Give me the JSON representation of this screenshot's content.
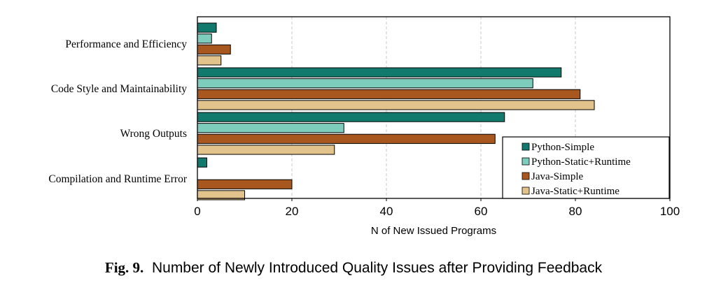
{
  "chart_data": {
    "type": "bar",
    "orientation": "horizontal",
    "categories": [
      "Performance and Efficiency",
      "Code Style and Maintainability",
      "Wrong Outputs",
      "Compilation and Runtime Error"
    ],
    "series": [
      {
        "name": "Python-Simple",
        "color": "#127a6c",
        "values": [
          4,
          77,
          65,
          2
        ]
      },
      {
        "name": "Python-Static+Runtime",
        "color": "#7ecdbc",
        "values": [
          3,
          71,
          31,
          0
        ]
      },
      {
        "name": "Java-Simple",
        "color": "#a8581f",
        "values": [
          7,
          81,
          63,
          20
        ]
      },
      {
        "name": "Java-Static+Runtime",
        "color": "#e2c38c",
        "values": [
          5,
          84,
          29,
          10
        ]
      }
    ],
    "xlabel": "N of New Issued Programs",
    "xlim": [
      0,
      100
    ],
    "xticks": [
      0,
      20,
      40,
      60,
      80,
      100
    ],
    "grid": "vertical dashed",
    "legend_position": "bottom-right inside"
  },
  "caption": {
    "label": "Fig. 9.",
    "text": "Number of Newly Introduced Quality Issues after Providing Feedback"
  }
}
